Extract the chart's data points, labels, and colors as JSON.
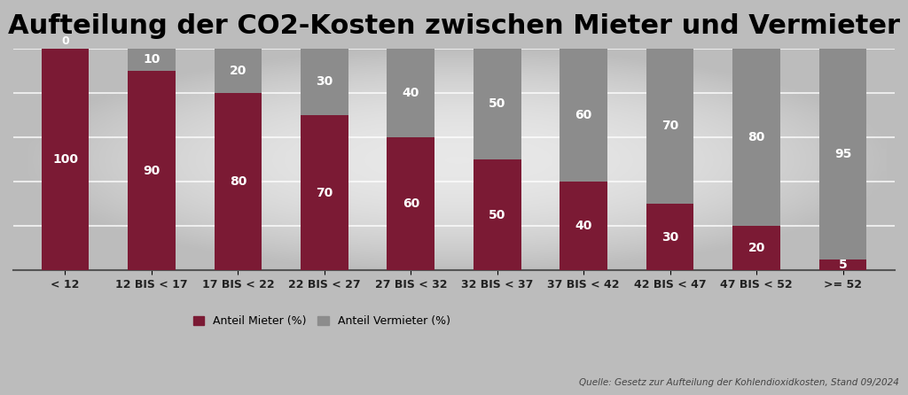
{
  "categories": [
    "< 12",
    "12 BIS < 17",
    "17 BIS < 22",
    "22 BIS < 27",
    "27 BIS < 32",
    "32 BIS < 37",
    "37 BIS < 42",
    "42 BIS < 47",
    "47 BIS < 52",
    ">= 52"
  ],
  "mieter": [
    100,
    90,
    80,
    70,
    60,
    50,
    40,
    30,
    20,
    5
  ],
  "vermieter": [
    0,
    10,
    20,
    30,
    40,
    50,
    60,
    70,
    80,
    95
  ],
  "mieter_color": "#7B1A34",
  "vermieter_color": "#8C8C8C",
  "title": "Aufteilung der CO2-Kosten zwischen Mieter und Vermieter",
  "title_fontsize": 22,
  "legend_mieter": "Anteil Mieter (%)",
  "legend_vermieter": "Anteil Vermieter (%)",
  "source_text": "Quelle: Gesetz zur Aufteilung der Kohlendioxidkosten, Stand 09/2024",
  "bg_dark": "#BCBCBC",
  "bg_light": "#E8E8E8",
  "bar_width": 0.55,
  "ylim": [
    0,
    100
  ],
  "label_fontsize": 10,
  "tick_fontsize": 9,
  "grid_color": "#FFFFFF",
  "grid_linewidth": 1.2,
  "grid_levels": [
    20,
    40,
    60,
    80,
    100
  ]
}
